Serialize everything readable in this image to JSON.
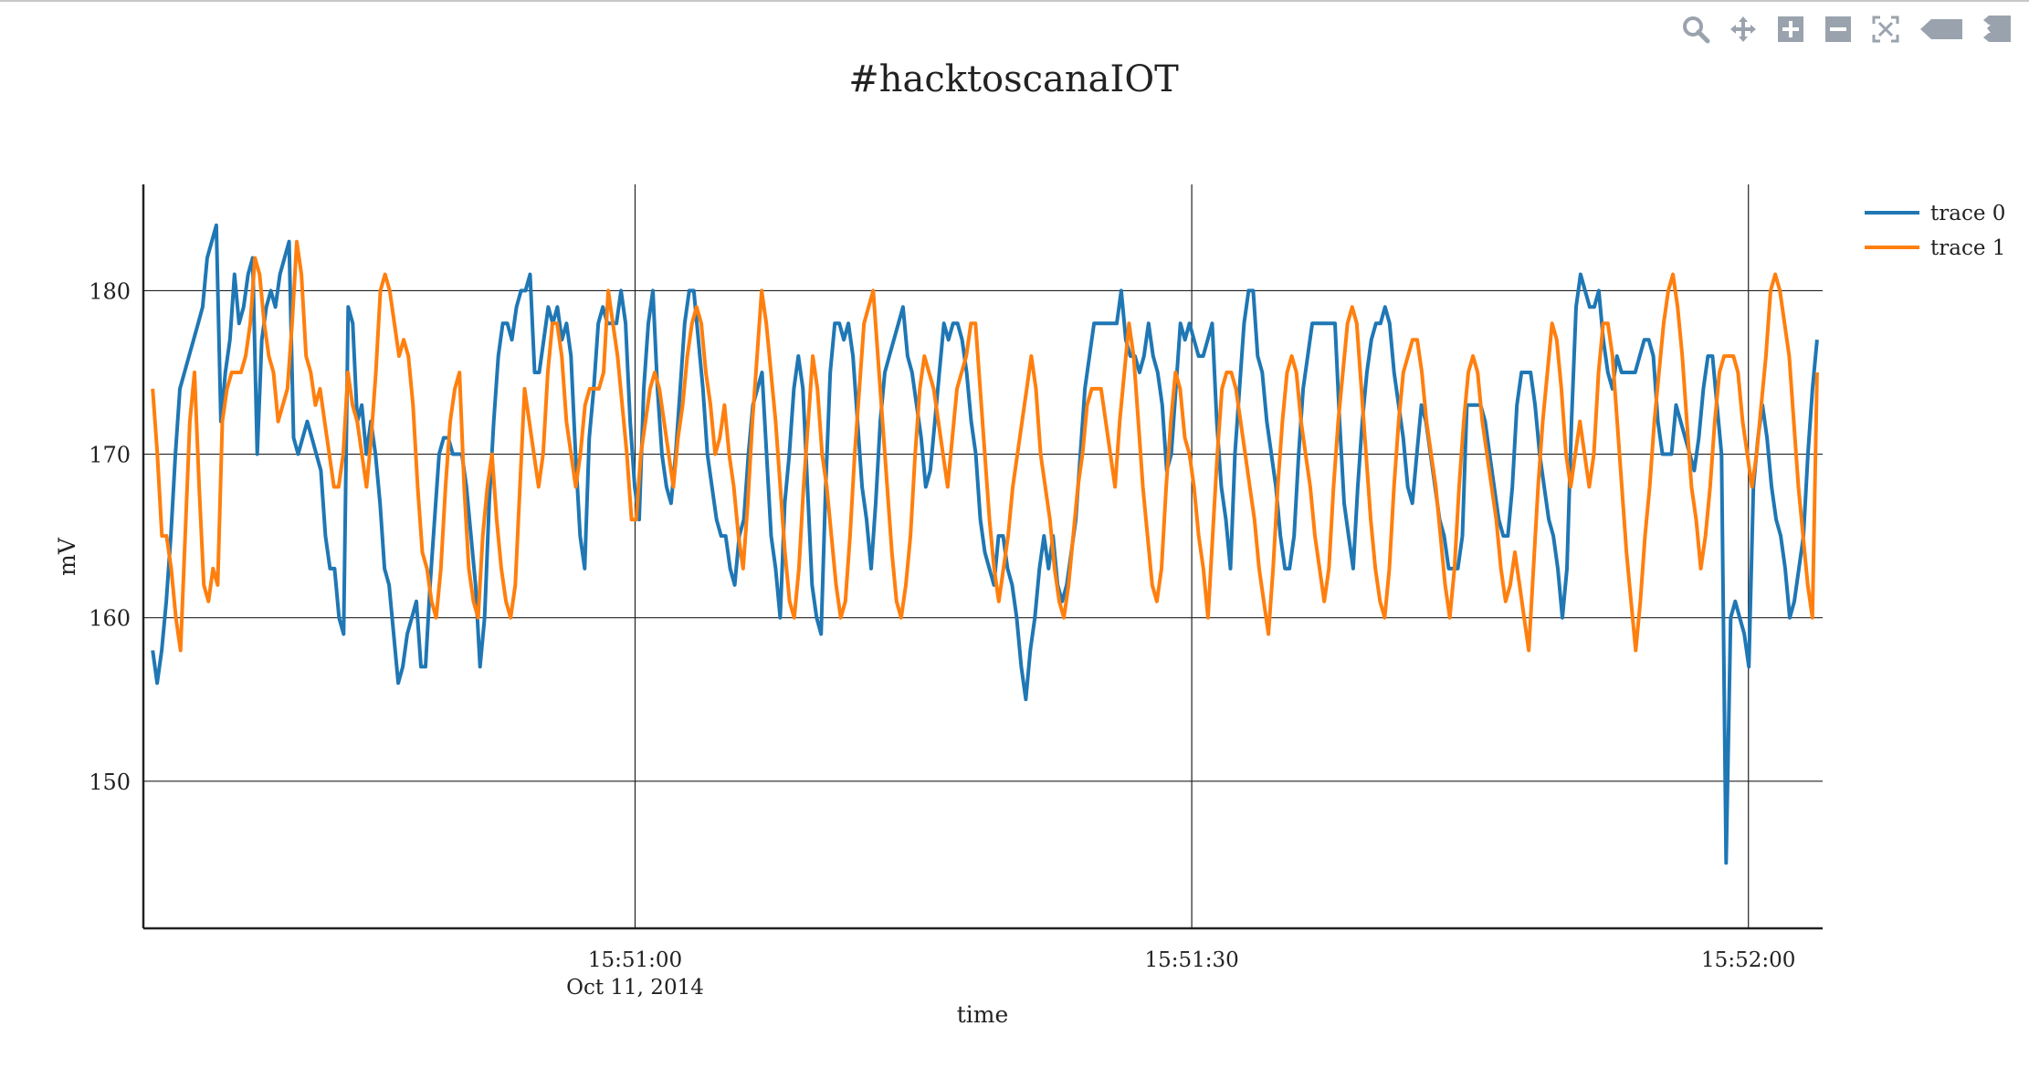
{
  "toolbar": {
    "icons": [
      "zoom-icon",
      "pan-icon",
      "zoom-in-icon",
      "zoom-out-icon",
      "autoscale-icon",
      "hover-closest-icon",
      "hover-compare-icon"
    ],
    "icon_color": "#9aa3ad"
  },
  "chart_data": {
    "type": "line",
    "title": "#hacktoscanaIOT",
    "xlabel": "time",
    "ylabel": "mV",
    "x_ticks": [
      {
        "t": "15:51:00",
        "label": "15:51:00",
        "sublabel": "Oct 11, 2014"
      },
      {
        "t": "15:51:30",
        "label": "15:51:30",
        "sublabel": ""
      },
      {
        "t": "15:52:00",
        "label": "15:52:00",
        "sublabel": ""
      }
    ],
    "xlim": [
      "15:50:33.5",
      "15:52:04"
    ],
    "ylim": [
      141,
      186.5
    ],
    "y_ticks": [
      150,
      160,
      170,
      180
    ],
    "grid": true,
    "legend_position": "top-right",
    "series": [
      {
        "name": "trace 0",
        "color": "#1f77b4",
        "values": [
          158,
          156,
          158,
          161,
          165,
          170,
          174,
          175,
          176,
          177,
          178,
          179,
          182,
          183,
          184,
          172,
          175,
          177,
          181,
          178,
          179,
          181,
          182,
          170,
          177,
          179,
          180,
          179,
          181,
          182,
          183,
          171,
          170,
          171,
          172,
          171,
          170,
          169,
          165,
          163,
          163,
          160,
          159,
          179,
          178,
          172,
          173,
          170,
          172,
          170,
          167,
          163,
          162,
          159,
          156,
          157,
          159,
          160,
          161,
          157,
          157,
          162,
          166,
          170,
          171,
          171,
          170,
          170,
          170,
          168,
          165,
          162,
          157,
          160,
          167,
          172,
          176,
          178,
          178,
          177,
          179,
          180,
          180,
          181,
          175,
          175,
          177,
          179,
          178,
          179,
          177,
          178,
          176,
          170,
          165,
          163,
          171,
          174,
          178,
          179,
          178,
          178,
          178,
          180,
          178,
          172,
          168,
          166,
          174,
          178,
          180,
          174,
          170,
          168,
          167,
          170,
          174,
          178,
          180,
          180,
          177,
          174,
          170,
          168,
          166,
          165,
          165,
          163,
          162,
          165,
          166,
          170,
          173,
          174,
          175,
          170,
          165,
          163,
          160,
          167,
          170,
          174,
          176,
          174,
          168,
          162,
          160,
          159,
          168,
          175,
          178,
          178,
          177,
          178,
          176,
          172,
          168,
          166,
          163,
          167,
          172,
          175,
          176,
          177,
          178,
          179,
          176,
          175,
          173,
          171,
          168,
          169,
          172,
          175,
          178,
          177,
          178,
          178,
          177,
          175,
          172,
          170,
          166,
          164,
          163,
          162,
          165,
          165,
          163,
          162,
          160,
          157,
          155,
          158,
          160,
          163,
          165,
          163,
          165,
          162,
          161,
          162,
          164,
          166,
          170,
          174,
          176,
          178,
          178,
          178,
          178,
          178,
          178,
          180,
          177,
          176,
          176,
          175,
          176,
          178,
          176,
          175,
          173,
          169,
          170,
          174,
          178,
          177,
          178,
          177,
          176,
          176,
          177,
          178,
          172,
          168,
          166,
          163,
          170,
          174,
          178,
          180,
          180,
          176,
          175,
          172,
          170,
          168,
          165,
          163,
          163,
          165,
          170,
          174,
          176,
          178,
          178,
          178,
          178,
          178,
          178,
          172,
          167,
          165,
          163,
          168,
          172,
          175,
          177,
          178,
          178,
          179,
          178,
          175,
          173,
          171,
          168,
          167,
          170,
          173,
          172,
          170,
          168,
          166,
          165,
          163,
          163,
          163,
          165,
          173,
          173,
          173,
          173,
          172,
          170,
          168,
          166,
          165,
          165,
          168,
          173,
          175,
          175,
          175,
          173,
          170,
          168,
          166,
          165,
          163,
          160,
          163,
          172,
          179,
          181,
          180,
          179,
          179,
          180,
          177,
          175,
          174,
          176,
          175,
          175,
          175,
          175,
          176,
          177,
          177,
          176,
          172,
          170,
          170,
          170,
          173,
          172,
          171,
          170,
          169,
          171,
          174,
          176,
          176,
          173,
          170,
          145,
          160,
          161,
          160,
          159,
          157,
          168,
          171,
          173,
          171,
          168,
          166,
          165,
          163,
          160,
          161,
          163,
          165,
          170,
          174,
          177
        ]
      },
      {
        "name": "trace 1",
        "color": "#ff7f0e",
        "values": [
          174,
          170,
          165,
          165,
          163,
          160,
          158,
          165,
          172,
          175,
          168,
          162,
          161,
          163,
          162,
          172,
          174,
          175,
          175,
          175,
          176,
          178,
          182,
          181,
          178,
          176,
          175,
          172,
          173,
          174,
          178,
          183,
          181,
          176,
          175,
          173,
          174,
          172,
          170,
          168,
          168,
          170,
          175,
          173,
          172,
          170,
          168,
          171,
          175,
          180,
          181,
          180,
          178,
          176,
          177,
          176,
          173,
          168,
          164,
          163,
          161,
          160,
          163,
          168,
          172,
          174,
          175,
          168,
          163,
          161,
          160,
          165,
          168,
          170,
          166,
          163,
          161,
          160,
          162,
          168,
          174,
          172,
          170,
          168,
          170,
          175,
          178,
          178,
          176,
          172,
          170,
          168,
          170,
          173,
          174,
          174,
          174,
          175,
          180,
          178,
          176,
          173,
          170,
          166,
          166,
          170,
          172,
          174,
          175,
          174,
          172,
          170,
          168,
          171,
          173,
          176,
          178,
          179,
          178,
          175,
          173,
          170,
          171,
          173,
          170,
          168,
          165,
          163,
          167,
          172,
          176,
          180,
          178,
          175,
          172,
          168,
          164,
          161,
          160,
          163,
          168,
          172,
          176,
          174,
          170,
          168,
          165,
          162,
          160,
          161,
          165,
          170,
          174,
          178,
          179,
          180,
          176,
          172,
          168,
          164,
          161,
          160,
          162,
          165,
          170,
          174,
          176,
          175,
          174,
          172,
          170,
          168,
          171,
          174,
          175,
          176,
          178,
          178,
          174,
          170,
          166,
          163,
          161,
          163,
          165,
          168,
          170,
          172,
          174,
          176,
          174,
          170,
          168,
          166,
          163,
          161,
          160,
          162,
          165,
          168,
          170,
          173,
          174,
          174,
          174,
          172,
          170,
          168,
          172,
          175,
          178,
          176,
          172,
          168,
          165,
          162,
          161,
          163,
          168,
          172,
          175,
          174,
          171,
          170,
          168,
          165,
          163,
          160,
          165,
          170,
          174,
          175,
          175,
          174,
          172,
          170,
          168,
          166,
          163,
          161,
          159,
          163,
          168,
          172,
          175,
          176,
          175,
          172,
          170,
          168,
          165,
          163,
          161,
          163,
          168,
          172,
          175,
          178,
          179,
          178,
          174,
          170,
          166,
          163,
          161,
          160,
          163,
          168,
          172,
          175,
          176,
          177,
          177,
          175,
          172,
          170,
          168,
          165,
          162,
          160,
          163,
          168,
          172,
          175,
          176,
          175,
          172,
          170,
          168,
          166,
          163,
          161,
          162,
          164,
          162,
          160,
          158,
          163,
          168,
          172,
          175,
          178,
          177,
          174,
          170,
          168,
          170,
          172,
          170,
          168,
          170,
          175,
          178,
          178,
          176,
          172,
          168,
          164,
          161,
          158,
          161,
          165,
          168,
          172,
          175,
          178,
          180,
          181,
          179,
          176,
          172,
          168,
          166,
          163,
          165,
          168,
          172,
          175,
          176,
          176,
          176,
          175,
          172,
          170,
          168,
          170,
          173,
          176,
          180,
          181,
          180,
          178,
          176,
          172,
          168,
          165,
          162,
          160,
          175
        ]
      }
    ]
  }
}
